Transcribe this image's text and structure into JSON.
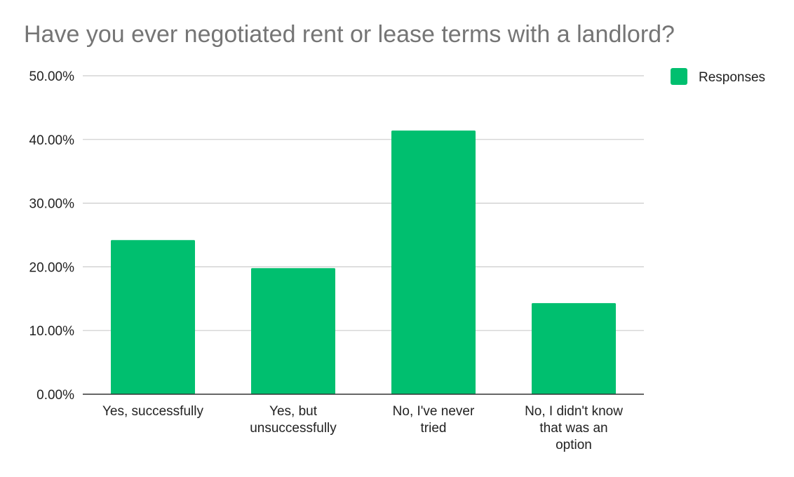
{
  "chart_data": {
    "type": "bar",
    "title": "Have you ever negotiated rent or lease terms with a landlord?",
    "xlabel": "",
    "ylabel": "",
    "categories": [
      [
        "Yes, successfully"
      ],
      [
        "Yes, but",
        "unsuccessfully"
      ],
      [
        "No, I've never",
        "tried"
      ],
      [
        "No, I didn't know",
        "that was an",
        "option"
      ]
    ],
    "series": [
      {
        "name": "Responses",
        "values": [
          0.242,
          0.198,
          0.414,
          0.143
        ],
        "color": "#00bf6f"
      }
    ],
    "yticks": [
      "0.00%",
      "10.00%",
      "20.00%",
      "30.00%",
      "40.00%",
      "50.00%"
    ],
    "ylim": [
      0,
      0.5
    ],
    "grid": true,
    "legend_position": "top-right",
    "colors": {
      "grid": "#cccccc",
      "axis": "#333333",
      "title": "#757575"
    }
  }
}
